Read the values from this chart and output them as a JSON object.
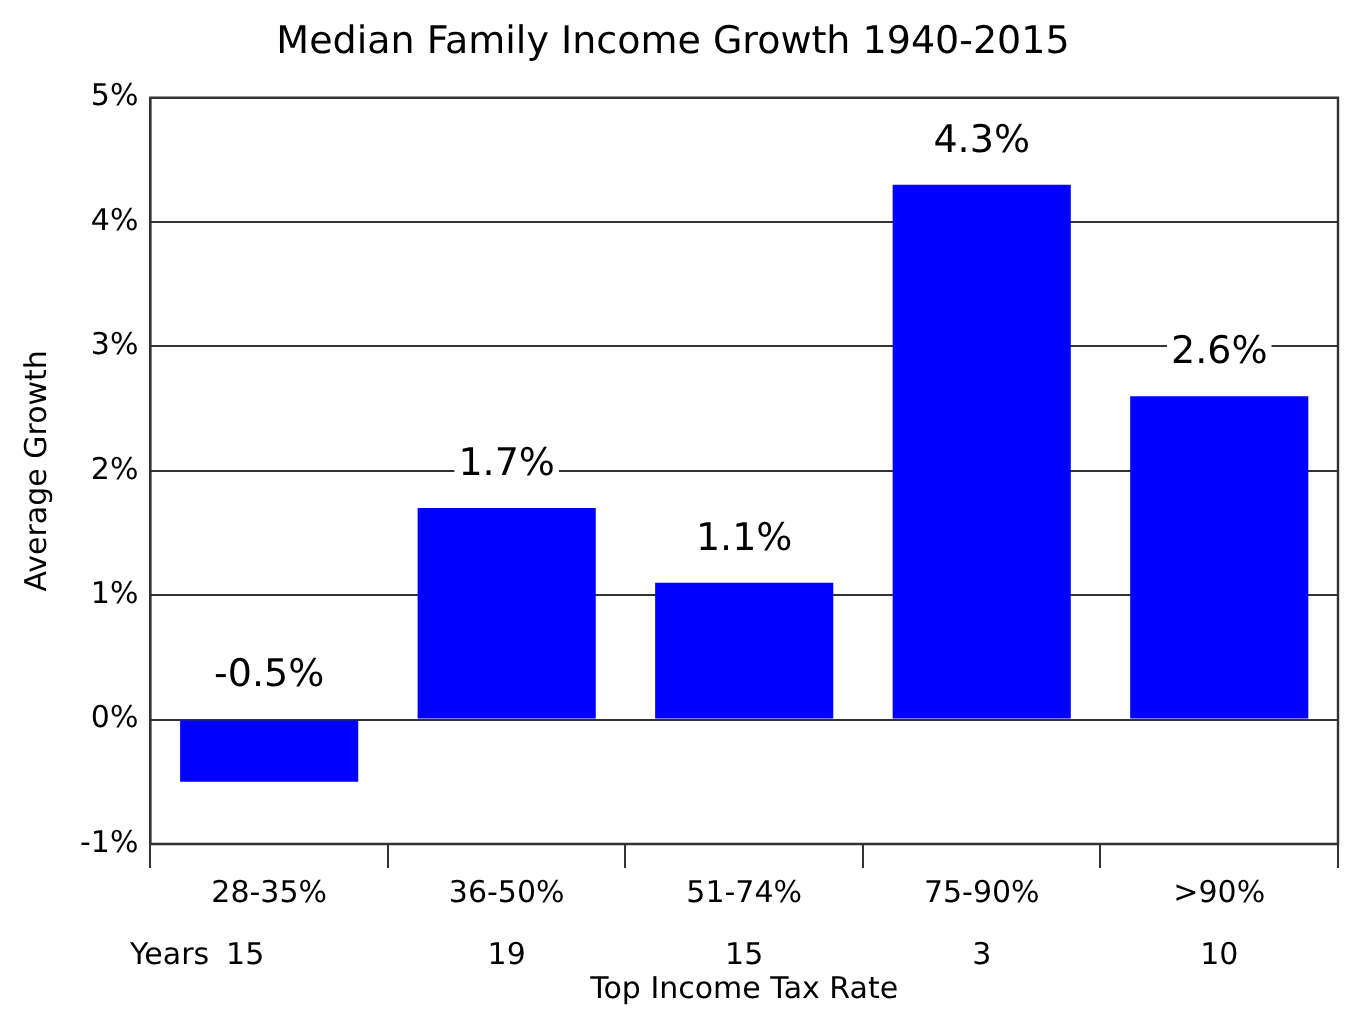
{
  "chart_data": {
    "type": "bar",
    "title": "Median Family Income Growth 1940-2015",
    "xlabel": "Top Income Tax Rate",
    "ylabel": "Average Growth",
    "categories": [
      "28-35%",
      "36-50%",
      "51-74%",
      "75-90%",
      ">90%"
    ],
    "values": [
      -0.5,
      1.7,
      1.1,
      4.3,
      2.6
    ],
    "color": "#0000ff",
    "value_labels": [
      "-0.5%",
      "1.7%",
      "1.1%",
      "4.3%",
      "2.6%"
    ],
    "ylim": [
      -1,
      5
    ],
    "yticks": [
      {
        "value": -1,
        "label": "-1%"
      },
      {
        "value": 0,
        "label": "0%"
      },
      {
        "value": 1,
        "label": "1%"
      },
      {
        "value": 2,
        "label": "2%"
      },
      {
        "value": 3,
        "label": "3%"
      },
      {
        "value": 4,
        "label": "4%"
      },
      {
        "value": 5,
        "label": "5%"
      }
    ],
    "grid": "y",
    "legend": false,
    "annotations": [
      "Years",
      "15",
      "19",
      "15",
      "3",
      "10"
    ]
  }
}
